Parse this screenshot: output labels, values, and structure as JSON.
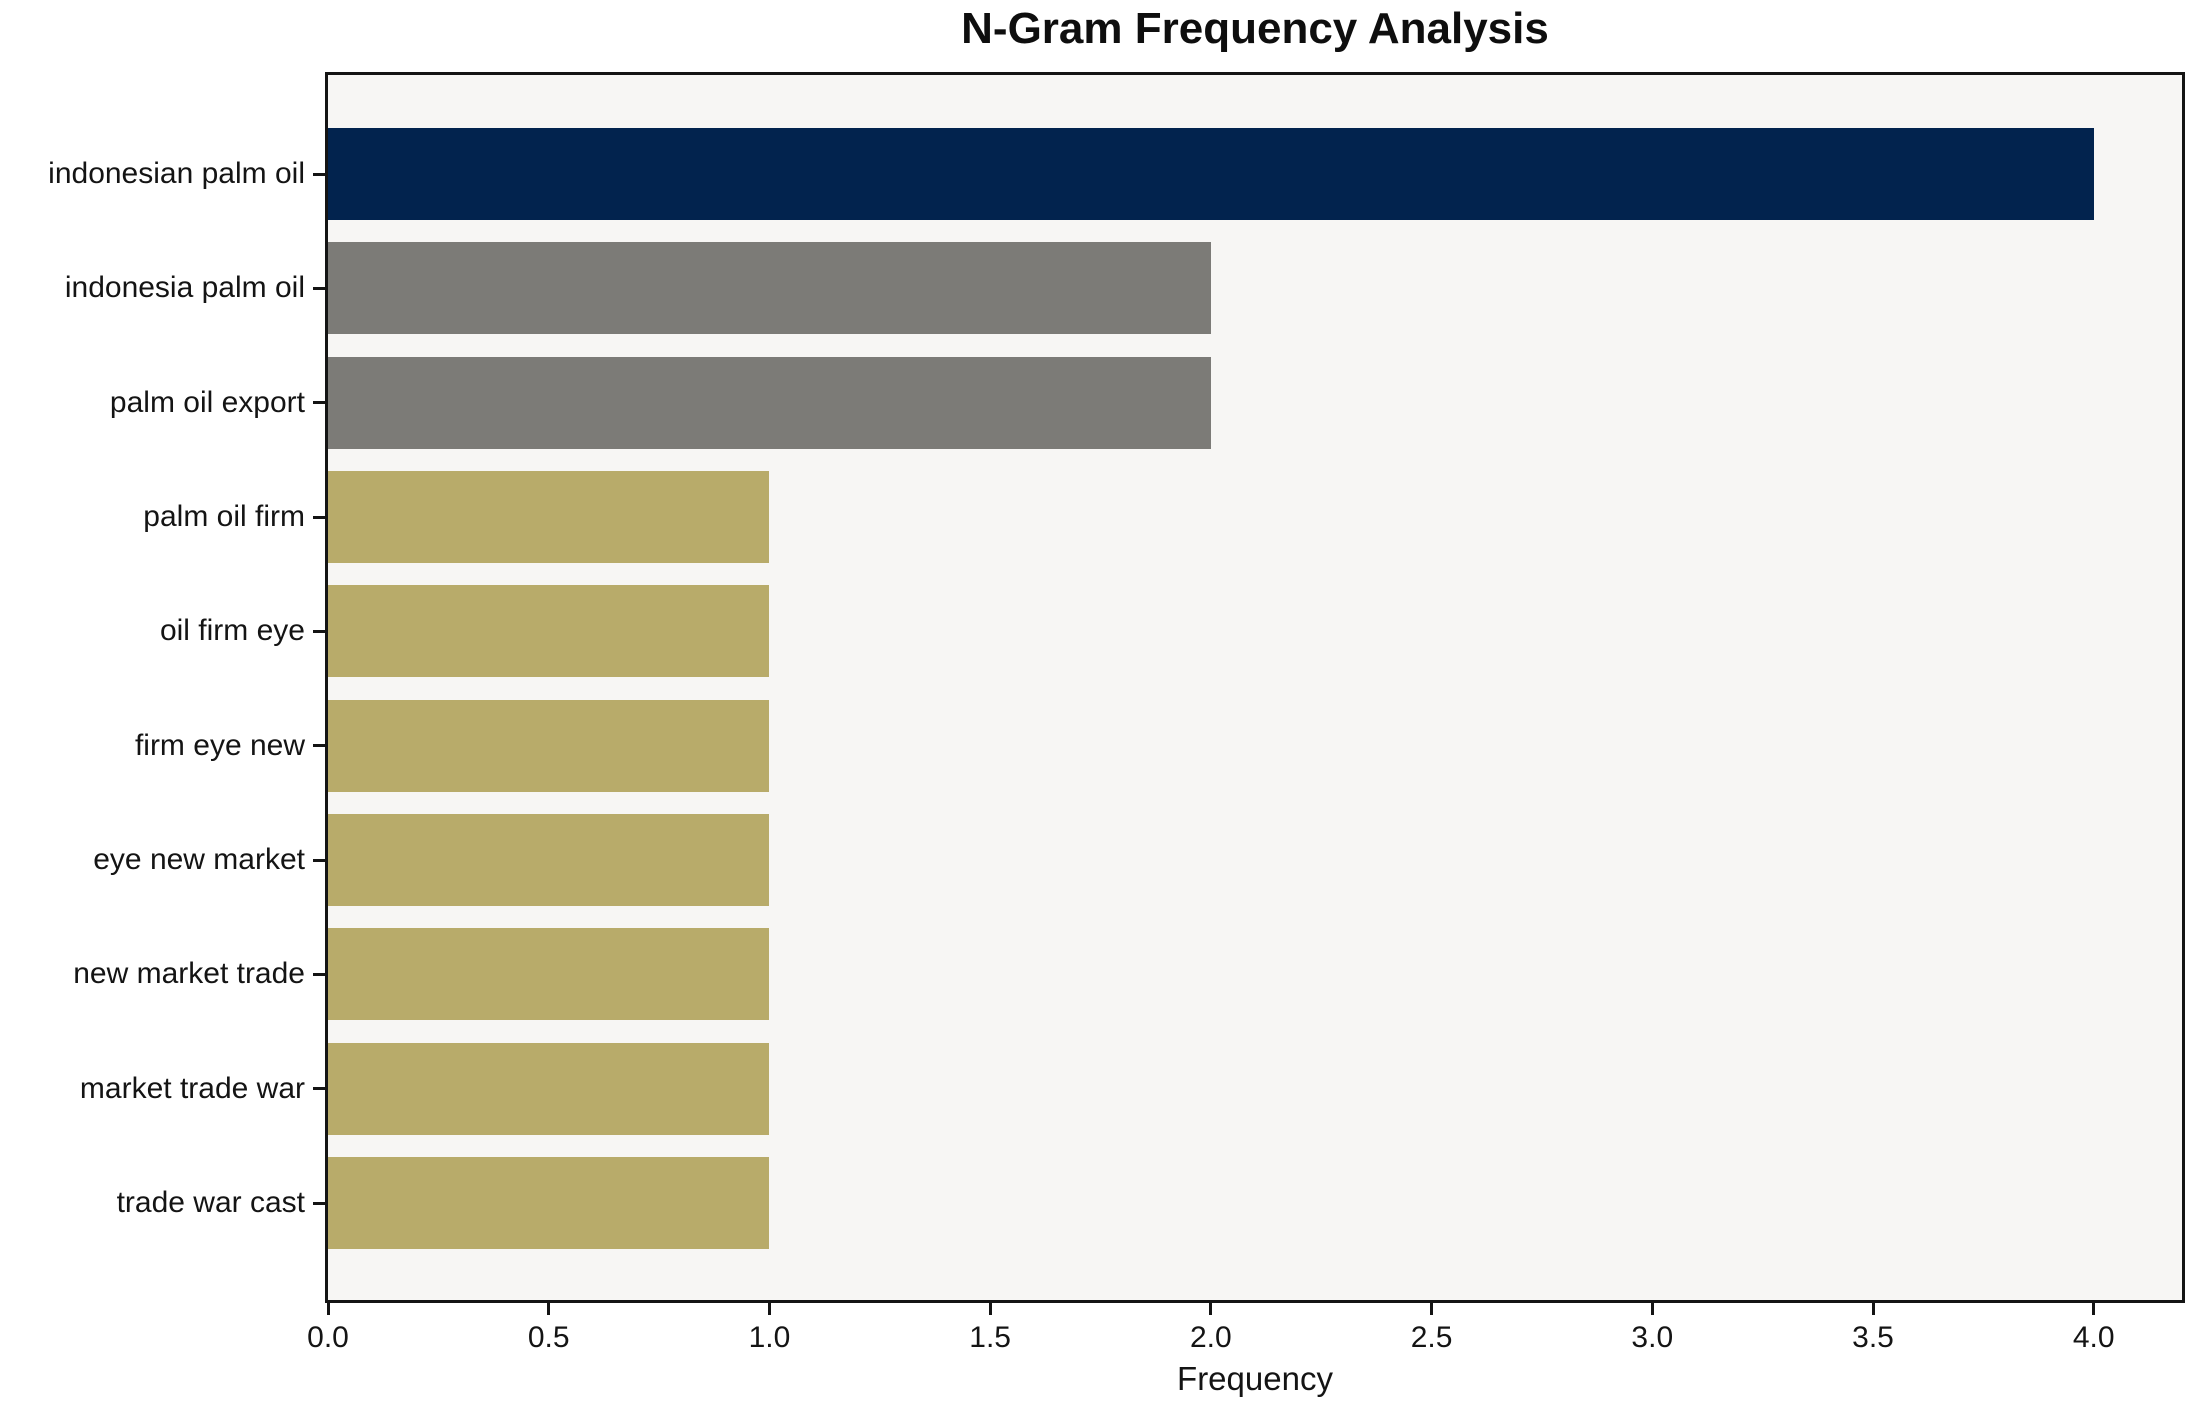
{
  "chart_data": {
    "type": "bar",
    "orientation": "horizontal",
    "title": "N-Gram Frequency Analysis",
    "xlabel": "Frequency",
    "ylabel": "",
    "categories": [
      "indonesian palm oil",
      "indonesia palm oil",
      "palm oil export",
      "palm oil firm",
      "oil firm eye",
      "firm eye new",
      "eye new market",
      "new market trade",
      "market trade war",
      "trade war cast"
    ],
    "values": [
      4,
      2,
      2,
      1,
      1,
      1,
      1,
      1,
      1,
      1
    ],
    "bar_colors": [
      "#02234e",
      "#7c7b77",
      "#7c7b77",
      "#b8ab6a",
      "#b8ab6a",
      "#b8ab6a",
      "#b8ab6a",
      "#b8ab6a",
      "#b8ab6a",
      "#b8ab6a"
    ],
    "xlim": [
      0,
      4.2
    ],
    "xticks": [
      {
        "value": 0.0,
        "label": "0.0"
      },
      {
        "value": 0.5,
        "label": "0.5"
      },
      {
        "value": 1.0,
        "label": "1.0"
      },
      {
        "value": 1.5,
        "label": "1.5"
      },
      {
        "value": 2.0,
        "label": "2.0"
      },
      {
        "value": 2.5,
        "label": "2.5"
      },
      {
        "value": 3.0,
        "label": "3.0"
      },
      {
        "value": 3.5,
        "label": "3.5"
      },
      {
        "value": 4.0,
        "label": "4.0"
      }
    ],
    "grid": false,
    "legend": null,
    "plot_background": "#f7f6f4",
    "figure_background": "#ffffff",
    "spine_color": "#141414"
  }
}
